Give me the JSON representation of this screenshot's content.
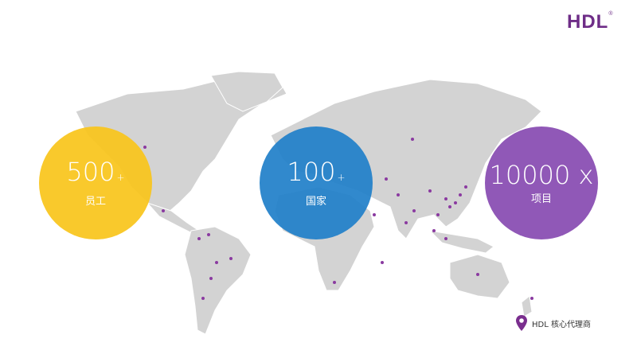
{
  "brand": {
    "logo": "HDL",
    "mark": "®",
    "color": "#6e2d87"
  },
  "stats": [
    {
      "value": "500",
      "suffix": "+",
      "label": "员工",
      "color": "#f8c41a"
    },
    {
      "value": "100",
      "suffix": "+",
      "label": "国家",
      "color": "#1f7fc9"
    },
    {
      "value": "10000 x",
      "suffix": "",
      "label": "项目",
      "color": "#8a4fb3"
    }
  ],
  "legend": {
    "label": "HDL 核心代理商",
    "icon": "map-pin-icon",
    "color": "#7a2e8e"
  },
  "map": {
    "land_color": "#d3d3d3",
    "marker_color": "#8a3aa0"
  }
}
